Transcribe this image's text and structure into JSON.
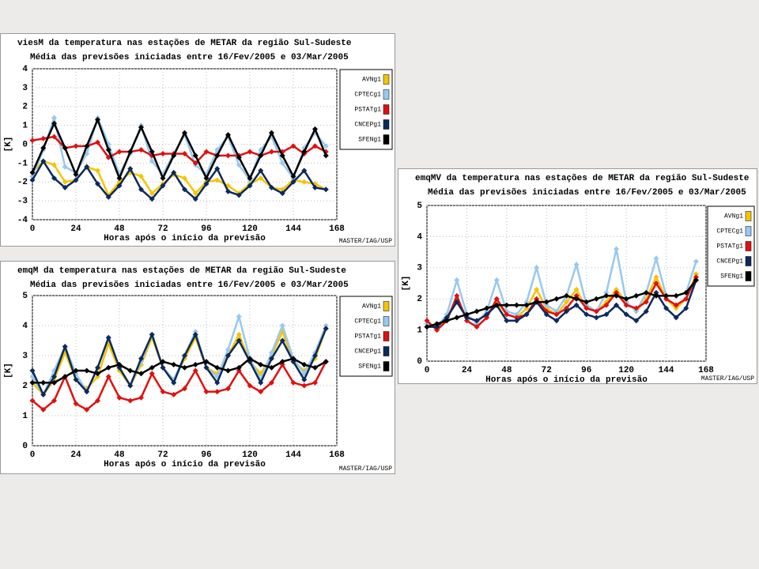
{
  "chart_data": [
    {
      "type": "line",
      "title": "viesM da temperatura nas estações de METAR da região Sul-Sudeste",
      "subtitle": "Média das previsões iniciadas entre 16/Fev/2005 e 03/Mar/2005",
      "xlabel": "Horas após o início da previsão",
      "ylabel": "[K]",
      "credit": "MASTER/IAG/USP",
      "x": [
        0,
        6,
        12,
        18,
        24,
        30,
        36,
        42,
        48,
        54,
        60,
        66,
        72,
        78,
        84,
        90,
        96,
        102,
        108,
        114,
        120,
        126,
        132,
        138,
        144,
        150,
        156,
        162
      ],
      "xlim": [
        0,
        168
      ],
      "xticks": [
        0,
        24,
        48,
        72,
        96,
        120,
        144,
        168
      ],
      "ylim": [
        -4,
        4
      ],
      "yticks": [
        -4,
        -3,
        -2,
        -1,
        0,
        1,
        2,
        3,
        4
      ],
      "grid": true,
      "series": [
        {
          "name": "AVNg1",
          "color": "#f5c400",
          "values": [
            -1.5,
            -0.9,
            -1.1,
            -2.0,
            -1.9,
            -1.2,
            -1.4,
            -2.7,
            -2.0,
            -1.5,
            -1.7,
            -2.6,
            -2.1,
            -1.6,
            -1.8,
            -2.6,
            -2.0,
            -1.9,
            -2.2,
            -2.6,
            -2.1,
            -1.8,
            -2.3,
            -2.4,
            -1.9,
            -2.0,
            -2.1,
            -2.4
          ]
        },
        {
          "name": "CPTECg1",
          "color": "#99c8f0",
          "values": [
            -1.7,
            -0.3,
            1.4,
            -1.2,
            -1.5,
            -0.5,
            1.4,
            0.0,
            -1.6,
            -0.5,
            1.0,
            -0.9,
            -1.6,
            -0.5,
            0.5,
            -1.1,
            -1.6,
            -0.3,
            0.4,
            -1.1,
            -1.9,
            -0.3,
            0.4,
            -1.0,
            -1.8,
            -0.2,
            0.6,
            -0.1
          ]
        },
        {
          "name": "PSTATg1",
          "color": "#e01010",
          "values": [
            0.2,
            0.3,
            0.4,
            -0.2,
            -0.1,
            -0.1,
            0.1,
            -0.7,
            -0.4,
            -0.4,
            -0.3,
            -0.6,
            -0.5,
            -0.5,
            -0.5,
            -1.0,
            -0.4,
            -0.6,
            -0.6,
            -0.6,
            -0.4,
            -0.6,
            -0.4,
            -0.4,
            -0.1,
            -0.5,
            -0.1,
            -0.4
          ]
        },
        {
          "name": "CNCEPg1",
          "color": "#0c2a5c",
          "values": [
            -1.9,
            -0.9,
            -1.8,
            -2.3,
            -1.9,
            -1.2,
            -2.1,
            -2.8,
            -2.2,
            -1.3,
            -2.4,
            -2.9,
            -2.2,
            -1.5,
            -2.4,
            -2.9,
            -2.1,
            -1.3,
            -2.5,
            -2.7,
            -2.2,
            -1.4,
            -2.3,
            -2.6,
            -2.0,
            -1.4,
            -2.3,
            -2.4
          ]
        },
        {
          "name": "SFENg1",
          "color": "#000000",
          "values": [
            -1.5,
            -0.2,
            1.1,
            -0.2,
            -1.6,
            -0.1,
            1.3,
            -0.3,
            -1.8,
            -0.4,
            0.9,
            -0.4,
            -1.8,
            -0.6,
            0.6,
            -0.6,
            -1.8,
            -0.6,
            0.5,
            -0.7,
            -1.8,
            -0.6,
            0.6,
            -0.6,
            -1.7,
            -0.4,
            0.8,
            -0.6
          ]
        }
      ]
    },
    {
      "type": "line",
      "title": "emqM da temperatura nas estações de METAR da região Sul-Sudeste",
      "subtitle": "Média das previsões iniciadas entre 16/Fev/2005 e 03/Mar/2005",
      "xlabel": "Horas após o início da previsão",
      "ylabel": "[K]",
      "credit": "MASTER/IAG/USP",
      "x": [
        0,
        6,
        12,
        18,
        24,
        30,
        36,
        42,
        48,
        54,
        60,
        66,
        72,
        78,
        84,
        90,
        96,
        102,
        108,
        114,
        120,
        126,
        132,
        138,
        144,
        150,
        156,
        162
      ],
      "xlim": [
        0,
        168
      ],
      "xticks": [
        0,
        24,
        48,
        72,
        96,
        120,
        144,
        168
      ],
      "ylim": [
        0,
        5
      ],
      "yticks": [
        0,
        1,
        2,
        3,
        4,
        5
      ],
      "grid": true,
      "series": [
        {
          "name": "AVNg1",
          "color": "#f5c400",
          "values": [
            2.1,
            1.7,
            2.2,
            3.1,
            2.2,
            1.9,
            2.3,
            3.4,
            2.5,
            2.0,
            2.7,
            3.6,
            2.6,
            2.2,
            2.9,
            3.6,
            2.6,
            2.4,
            3.0,
            3.7,
            2.8,
            2.4,
            3.0,
            3.8,
            2.8,
            2.5,
            2.9,
            3.9
          ]
        },
        {
          "name": "CPTECg1",
          "color": "#99c8f0",
          "values": [
            2.3,
            1.7,
            2.5,
            3.3,
            2.4,
            1.8,
            2.6,
            3.6,
            2.6,
            2.0,
            2.8,
            3.7,
            2.6,
            2.2,
            3.0,
            3.8,
            2.6,
            2.3,
            3.2,
            4.3,
            2.9,
            2.2,
            3.1,
            4.0,
            2.9,
            2.4,
            3.1,
            4.0
          ]
        },
        {
          "name": "PSTATg1",
          "color": "#e01010",
          "values": [
            1.5,
            1.2,
            1.5,
            2.3,
            1.4,
            1.2,
            1.5,
            2.3,
            1.6,
            1.5,
            1.6,
            2.4,
            1.8,
            1.7,
            1.9,
            2.5,
            1.8,
            1.8,
            1.9,
            2.5,
            2.0,
            1.8,
            2.1,
            2.7,
            2.1,
            2.0,
            2.1,
            2.8
          ]
        },
        {
          "name": "CNCEPg1",
          "color": "#0c2a5c",
          "values": [
            2.5,
            1.7,
            2.3,
            3.3,
            2.2,
            1.8,
            2.6,
            3.6,
            2.6,
            2.0,
            2.9,
            3.7,
            2.6,
            2.1,
            3.0,
            3.7,
            2.6,
            2.1,
            3.0,
            3.5,
            2.8,
            2.1,
            2.9,
            3.5,
            2.8,
            2.2,
            3.0,
            3.9
          ]
        },
        {
          "name": "SFENg1",
          "color": "#000000",
          "values": [
            2.1,
            2.1,
            2.1,
            2.3,
            2.5,
            2.5,
            2.4,
            2.6,
            2.7,
            2.5,
            2.4,
            2.6,
            2.8,
            2.7,
            2.6,
            2.7,
            2.8,
            2.6,
            2.5,
            2.6,
            2.9,
            2.7,
            2.6,
            2.8,
            2.9,
            2.7,
            2.6,
            2.8
          ]
        }
      ]
    },
    {
      "type": "line",
      "title": "emqMV da temperatura nas estações de METAR da região Sul-Sudeste",
      "subtitle": "Média das previsões iniciadas entre 16/Fev/2005 e 03/Mar/2005",
      "xlabel": "Horas após o início da previsão",
      "ylabel": "[K]",
      "credit": "MASTER/IAG/USP",
      "x": [
        0,
        6,
        12,
        18,
        24,
        30,
        36,
        42,
        48,
        54,
        60,
        66,
        72,
        78,
        84,
        90,
        96,
        102,
        108,
        114,
        120,
        126,
        132,
        138,
        144,
        150,
        156,
        162
      ],
      "xlim": [
        0,
        168
      ],
      "xticks": [
        0,
        24,
        48,
        72,
        96,
        120,
        144,
        168
      ],
      "ylim": [
        0,
        5
      ],
      "yticks": [
        0,
        1,
        2,
        3,
        4,
        5
      ],
      "grid": true,
      "series": [
        {
          "name": "AVNg1",
          "color": "#f5c400",
          "values": [
            1.2,
            1.1,
            1.4,
            2.0,
            1.4,
            1.3,
            1.5,
            1.9,
            1.5,
            1.4,
            1.7,
            2.3,
            1.7,
            1.5,
            1.9,
            2.3,
            1.7,
            1.6,
            1.9,
            2.3,
            1.9,
            1.6,
            2.0,
            2.7,
            2.0,
            1.7,
            2.0,
            2.8
          ]
        },
        {
          "name": "CPTECg1",
          "color": "#99c8f0",
          "values": [
            1.2,
            1.1,
            1.5,
            2.6,
            1.5,
            1.2,
            1.6,
            2.6,
            1.6,
            1.5,
            1.9,
            3.0,
            1.8,
            1.6,
            2.1,
            3.1,
            1.8,
            1.6,
            2.2,
            3.6,
            1.9,
            1.6,
            2.2,
            3.3,
            2.1,
            2.1,
            2.2,
            3.2
          ]
        },
        {
          "name": "PSTATg1",
          "color": "#e01010",
          "values": [
            1.3,
            1.0,
            1.3,
            2.1,
            1.3,
            1.1,
            1.4,
            2.0,
            1.5,
            1.4,
            1.5,
            2.0,
            1.6,
            1.5,
            1.7,
            2.1,
            1.7,
            1.6,
            1.8,
            2.2,
            1.8,
            1.7,
            1.9,
            2.5,
            2.0,
            1.8,
            2.0,
            2.7
          ]
        },
        {
          "name": "CNCEPg1",
          "color": "#0c2a5c",
          "values": [
            1.1,
            1.1,
            1.4,
            1.9,
            1.4,
            1.3,
            1.5,
            1.8,
            1.3,
            1.3,
            1.5,
            1.9,
            1.5,
            1.3,
            1.6,
            1.8,
            1.5,
            1.4,
            1.5,
            1.8,
            1.5,
            1.3,
            1.6,
            2.2,
            1.7,
            1.4,
            1.7,
            2.6
          ]
        },
        {
          "name": "SFENg1",
          "color": "#000000",
          "values": [
            1.1,
            1.2,
            1.3,
            1.4,
            1.5,
            1.6,
            1.7,
            1.8,
            1.8,
            1.8,
            1.8,
            1.9,
            1.9,
            2.0,
            2.1,
            2.0,
            1.9,
            2.0,
            2.1,
            2.1,
            2.0,
            2.1,
            2.2,
            2.1,
            2.1,
            2.1,
            2.2,
            2.6
          ]
        }
      ]
    }
  ]
}
